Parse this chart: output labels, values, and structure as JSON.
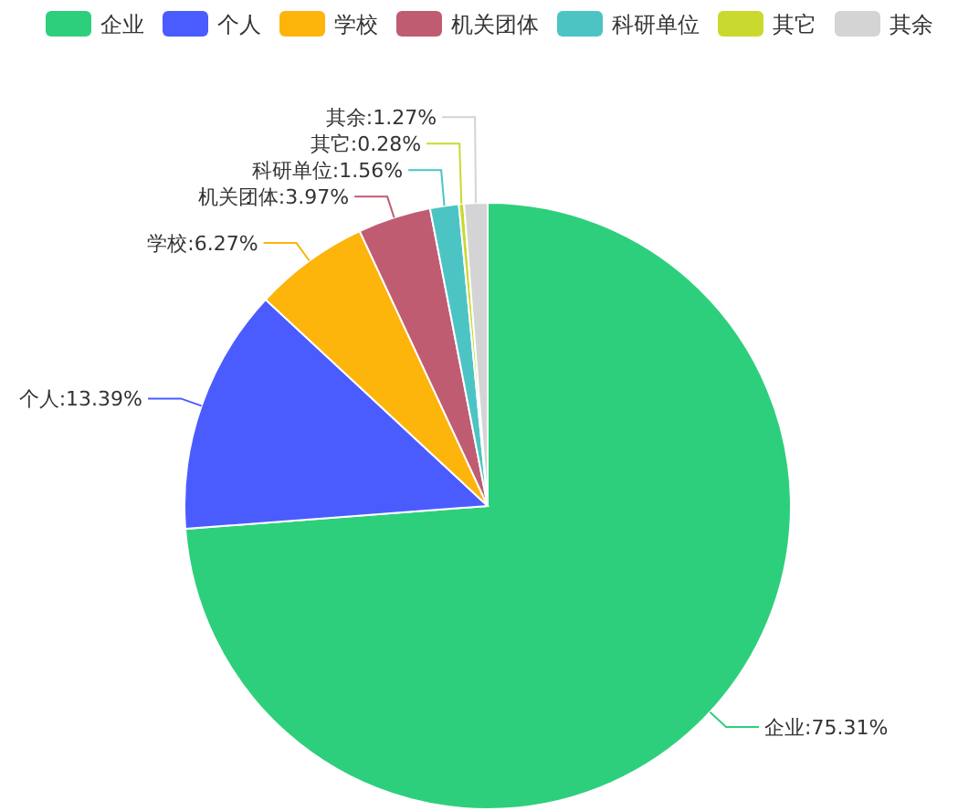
{
  "chart_data": {
    "type": "pie",
    "categories": [
      "企业",
      "个人",
      "学校",
      "机关团体",
      "科研单位",
      "其它",
      "其余"
    ],
    "values": [
      75.31,
      13.39,
      6.27,
      3.97,
      1.56,
      0.28,
      1.27
    ],
    "value_labels": [
      ":75.31%",
      ":13.39%",
      ":6.27%",
      ":3.97%",
      ":1.56%",
      ":0.28%",
      ":1.27%"
    ],
    "colors": [
      "#2ecf7c",
      "#4b5cff",
      "#fdb40b",
      "#c05c72",
      "#4cc4c4",
      "#c9d92e",
      "#d4d4d4"
    ],
    "legend": "top"
  }
}
